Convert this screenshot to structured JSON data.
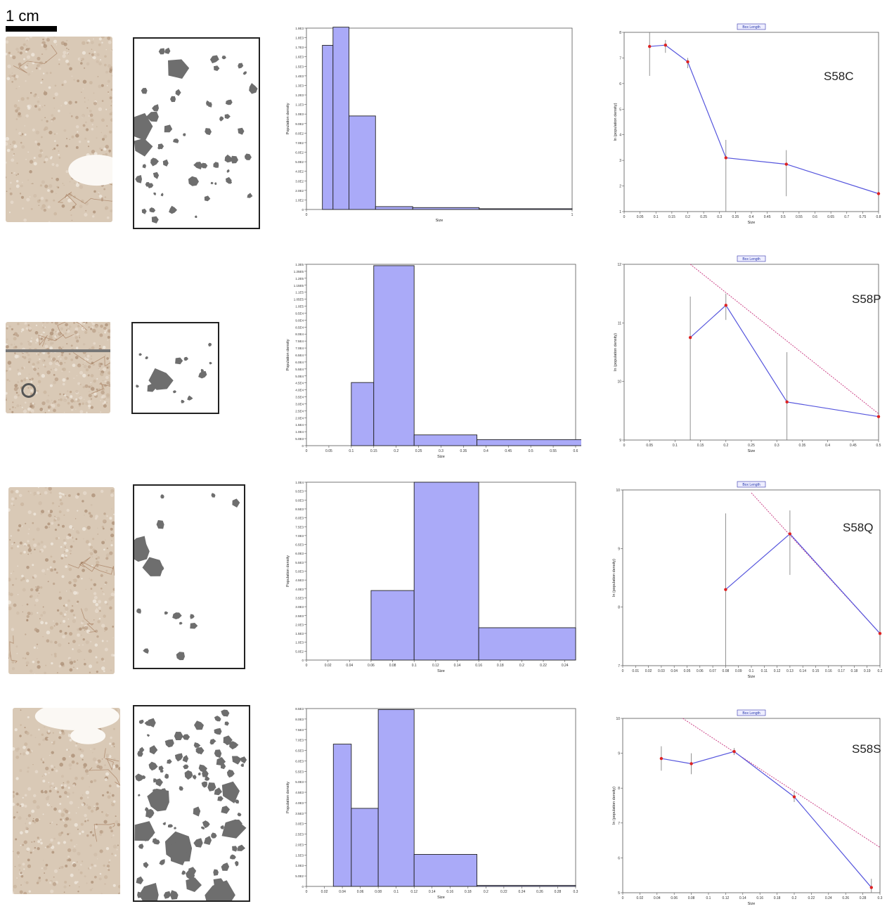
{
  "scale_bar": {
    "label": "1 cm"
  },
  "style": {
    "bar_fill": "#aaaaf8",
    "bar_stroke": "#222222",
    "grain_color": "#6e6e6e",
    "line_color": "#5555dd",
    "point_color": "#dd2222",
    "fit_color": "#cc4488",
    "legend_border": "#3333aa",
    "photo_base": "#d9c9b6"
  },
  "chart_data": [
    {
      "type": "bar",
      "sample": "S58C",
      "xlabel": "Size",
      "ylabel": "Population density",
      "xlim": [
        0,
        1
      ],
      "x_ticks": [
        "0",
        "1"
      ],
      "ylim": [
        0,
        1.9
      ],
      "y_ticks": [
        "1.9E3",
        "1.8E3",
        "1.7E3",
        "1.6E3",
        "1.5E3",
        "1.4E3",
        "1.3E3",
        "1.2E3",
        "1.1E3",
        "1.0E3",
        "9.0E2",
        "8.0E2",
        "7.0E2",
        "6.0E2",
        "5.0E2",
        "4.0E2",
        "3.0E2",
        "2.0E2",
        "1.0E2",
        "0"
      ],
      "bins": [
        [
          0.06,
          0.1,
          1.72
        ],
        [
          0.1,
          0.16,
          1.91
        ],
        [
          0.16,
          0.26,
          0.98
        ],
        [
          0.26,
          0.4,
          0.03
        ],
        [
          0.4,
          0.65,
          0.02
        ],
        [
          0.65,
          1.0,
          0.008
        ]
      ]
    },
    {
      "type": "line",
      "sample": "S58C",
      "legend": "Box Length",
      "xlabel": "Size",
      "ylabel": "ln (population density)",
      "xlim": [
        0,
        0.8
      ],
      "x_ticks": [
        "0",
        "0.05",
        "0.1",
        "0.15",
        "0.2",
        "0.25",
        "0.3",
        "0.35",
        "0.4",
        "0.45",
        "0.5",
        "0.55",
        "0.6",
        "0.65",
        "0.7",
        "0.75",
        "0.8"
      ],
      "ylim": [
        1,
        8
      ],
      "y_ticks": [
        "1",
        "2",
        "3",
        "4",
        "5",
        "6",
        "7",
        "8"
      ],
      "points": [
        [
          0.08,
          7.45
        ],
        [
          0.13,
          7.5
        ],
        [
          0.2,
          6.85
        ],
        [
          0.32,
          3.1
        ],
        [
          0.51,
          2.85
        ],
        [
          0.8,
          1.7
        ]
      ],
      "errors": [
        [
          0.08,
          6.3,
          7.99
        ],
        [
          0.13,
          7.2,
          7.7
        ],
        [
          0.2,
          6.6,
          7.0
        ],
        [
          0.32,
          1.0,
          3.8
        ],
        [
          0.51,
          1.6,
          3.4
        ],
        [
          0.8,
          1.0,
          2.3
        ]
      ],
      "fit": null
    },
    {
      "type": "bar",
      "sample": "S58P",
      "xlabel": "Size",
      "ylabel": "Population density",
      "xlim": [
        0,
        0.6
      ],
      "x_ticks": [
        "0",
        "0.05",
        "0.1",
        "0.15",
        "0.2",
        "0.25",
        "0.3",
        "0.35",
        "0.4",
        "0.45",
        "0.5",
        "0.55",
        "0.6"
      ],
      "ylim": [
        0,
        1.35
      ],
      "y_ticks": [
        "1.3E5",
        "1.25E5",
        "1.2E5",
        "1.15E5",
        "1.1E5",
        "1.05E5",
        "1.0E5",
        "9.5E4",
        "9.0E4",
        "8.5E4",
        "8.0E4",
        "7.5E4",
        "7.0E4",
        "6.5E4",
        "6.0E4",
        "5.5E4",
        "5.0E4",
        "4.5E4",
        "4.0E4",
        "3.5E4",
        "3.0E4",
        "2.5E4",
        "2.0E4",
        "1.5E4",
        "1.0E4",
        "5.0E3",
        "0"
      ],
      "bins": [
        [
          0.1,
          0.15,
          0.47
        ],
        [
          0.15,
          0.24,
          1.34
        ],
        [
          0.24,
          0.38,
          0.08
        ],
        [
          0.38,
          0.62,
          0.045
        ]
      ]
    },
    {
      "type": "line",
      "sample": "S58P",
      "legend": "Box Length",
      "xlabel": "Size",
      "ylabel": "ln (population density)",
      "xlim": [
        0,
        0.5
      ],
      "x_ticks": [
        "0",
        "0.05",
        "0.1",
        "0.15",
        "0.2",
        "0.25",
        "0.3",
        "0.35",
        "0.4",
        "0.45",
        "0.5"
      ],
      "ylim": [
        9,
        12
      ],
      "y_ticks": [
        "9",
        "10",
        "11",
        "12"
      ],
      "points": [
        [
          0.13,
          10.75
        ],
        [
          0.2,
          11.3
        ],
        [
          0.32,
          9.65
        ],
        [
          0.5,
          9.4
        ]
      ],
      "errors": [
        [
          0.13,
          9.0,
          11.45
        ],
        [
          0.2,
          11.05,
          11.5
        ],
        [
          0.32,
          9.0,
          10.5
        ],
        [
          0.5,
          9.0,
          9.85
        ]
      ],
      "fit": [
        [
          0.13,
          12.0
        ],
        [
          0.5,
          9.45
        ]
      ]
    },
    {
      "type": "bar",
      "sample": "S58Q",
      "xlabel": "Size",
      "ylabel": "Population density",
      "xlim": [
        0,
        0.25
      ],
      "x_ticks": [
        "0",
        "0.02",
        "0.04",
        "0.06",
        "0.08",
        "0.1",
        "0.12",
        "0.14",
        "0.16",
        "0.18",
        "0.2",
        "0.22",
        "0.24"
      ],
      "ylim": [
        0,
        1.1
      ],
      "y_ticks": [
        "1.0E4",
        "9.5E3",
        "9.0E3",
        "8.5E3",
        "8.0E3",
        "7.5E3",
        "7.0E3",
        "6.5E3",
        "6.0E3",
        "5.5E3",
        "5.0E3",
        "4.5E3",
        "4.0E3",
        "3.5E3",
        "3.0E3",
        "2.5E3",
        "2.0E3",
        "1.5E3",
        "1.0E3",
        "5.0E2",
        "0"
      ],
      "bins": [
        [
          0.06,
          0.1,
          0.43
        ],
        [
          0.1,
          0.16,
          1.1
        ],
        [
          0.16,
          0.25,
          0.2
        ]
      ]
    },
    {
      "type": "line",
      "sample": "S58Q",
      "legend": "Box Length",
      "xlabel": "Size",
      "ylabel": "ln (population density)",
      "xlim": [
        0,
        0.2
      ],
      "x_ticks": [
        "0",
        "0.01",
        "0.02",
        "0.03",
        "0.04",
        "0.05",
        "0.06",
        "0.07",
        "0.08",
        "0.09",
        "0.1",
        "0.11",
        "0.12",
        "0.13",
        "0.14",
        "0.15",
        "0.16",
        "0.17",
        "0.18",
        "0.19",
        "0.2"
      ],
      "ylim": [
        7,
        10
      ],
      "y_ticks": [
        "7",
        "8",
        "9",
        "10"
      ],
      "points": [
        [
          0.08,
          8.3
        ],
        [
          0.13,
          9.25
        ],
        [
          0.2,
          7.55
        ]
      ],
      "errors": [
        [
          0.08,
          7.0,
          9.6
        ],
        [
          0.13,
          8.55,
          9.65
        ],
        [
          0.2,
          7.0,
          8.05
        ]
      ],
      "fit": [
        [
          0.1,
          9.95
        ],
        [
          0.2,
          7.55
        ]
      ]
    },
    {
      "type": "bar",
      "sample": "S58S",
      "xlabel": "Size",
      "ylabel": "Population density",
      "xlim": [
        0,
        0.3
      ],
      "x_ticks": [
        "0",
        "0.02",
        "0.04",
        "0.06",
        "0.08",
        "0.1",
        "0.12",
        "0.14",
        "0.16",
        "0.18",
        "0.2",
        "0.22",
        "0.24",
        "0.26",
        "0.28",
        "0.3"
      ],
      "ylim": [
        0,
        9.0
      ],
      "y_ticks": [
        "8.5E3",
        "8.0E3",
        "7.5E3",
        "7.0E3",
        "6.5E3",
        "6.0E3",
        "5.5E3",
        "5.0E3",
        "4.5E3",
        "4.0E3",
        "3.5E3",
        "3.0E3",
        "2.5E3",
        "2.0E3",
        "1.5E3",
        "1.0E3",
        "5.0E2",
        "0"
      ],
      "bins": [
        [
          0.03,
          0.05,
          7.2
        ],
        [
          0.05,
          0.08,
          3.95
        ],
        [
          0.08,
          0.12,
          8.95
        ],
        [
          0.12,
          0.19,
          1.62
        ],
        [
          0.19,
          0.3,
          0.05
        ]
      ]
    },
    {
      "type": "line",
      "sample": "S58S",
      "legend": "Box Length",
      "xlabel": "Size",
      "ylabel": "ln (population density)",
      "xlim": [
        0,
        0.3
      ],
      "x_ticks": [
        "0",
        "0.02",
        "0.04",
        "0.06",
        "0.08",
        "0.1",
        "0.12",
        "0.14",
        "0.16",
        "0.18",
        "0.2",
        "0.22",
        "0.24",
        "0.26",
        "0.28",
        "0.3"
      ],
      "ylim": [
        5,
        10
      ],
      "y_ticks": [
        "5",
        "6",
        "7",
        "8",
        "9",
        "10"
      ],
      "points": [
        [
          0.045,
          8.85
        ],
        [
          0.08,
          8.7
        ],
        [
          0.13,
          9.05
        ],
        [
          0.2,
          7.75
        ],
        [
          0.29,
          5.15
        ]
      ],
      "errors": [
        [
          0.045,
          8.5,
          9.2
        ],
        [
          0.08,
          8.4,
          9.0
        ],
        [
          0.13,
          8.95,
          9.15
        ],
        [
          0.2,
          7.6,
          7.9
        ],
        [
          0.29,
          5.0,
          5.4
        ]
      ],
      "fit": [
        [
          0.07,
          10.0
        ],
        [
          0.3,
          6.3
        ]
      ]
    }
  ]
}
